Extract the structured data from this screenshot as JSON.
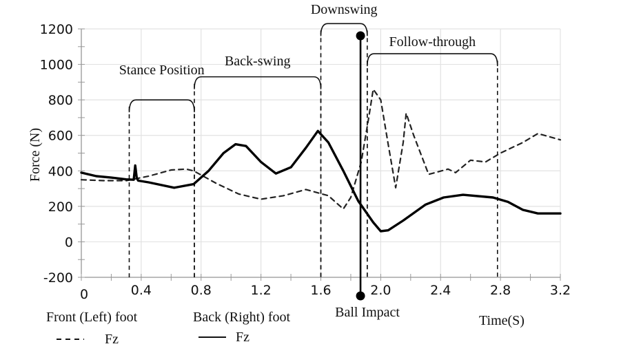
{
  "chart_data": {
    "type": "line",
    "title": "",
    "xlabel": "Time(S)",
    "ylabel": "Force (N)",
    "xlim": [
      0,
      3.2
    ],
    "ylim": [
      -200,
      1200
    ],
    "grid": true,
    "x_ticks": [
      "0",
      "0.4",
      "0.8",
      "1.2",
      "1.6",
      "2.0",
      "2.4",
      "2.8",
      "3.2"
    ],
    "x_tick_values": [
      0,
      0.4,
      0.8,
      1.2,
      1.6,
      2.0,
      2.4,
      2.8,
      3.2
    ],
    "y_ticks": [
      "1200",
      "1000",
      "800",
      "600",
      "400",
      "200",
      "0",
      "-200"
    ],
    "y_tick_values": [
      1200,
      1000,
      800,
      600,
      400,
      200,
      0,
      -200
    ],
    "series": [
      {
        "name": "Front (Left) foot Fz",
        "style": "dashed",
        "x": [
          0,
          0.15,
          0.3,
          0.45,
          0.6,
          0.7,
          0.75,
          0.9,
          1.05,
          1.2,
          1.35,
          1.5,
          1.65,
          1.75,
          1.8,
          1.87,
          1.92,
          1.95,
          2.0,
          2.05,
          2.1,
          2.15,
          2.17,
          2.22,
          2.32,
          2.45,
          2.5,
          2.6,
          2.7,
          2.8,
          2.95,
          3.05,
          3.2
        ],
        "y": [
          350,
          345,
          345,
          370,
          405,
          410,
          400,
          330,
          270,
          240,
          260,
          295,
          260,
          185,
          250,
          450,
          700,
          860,
          800,
          550,
          305,
          560,
          725,
          600,
          380,
          410,
          390,
          460,
          450,
          500,
          560,
          610,
          575
        ]
      },
      {
        "name": "Back (Right) foot Fz",
        "style": "solid",
        "x": [
          0,
          0.1,
          0.2,
          0.3,
          0.35,
          0.36,
          0.37,
          0.38,
          0.45,
          0.62,
          0.75,
          0.85,
          0.95,
          1.03,
          1.1,
          1.2,
          1.3,
          1.4,
          1.5,
          1.58,
          1.65,
          1.75,
          1.85,
          1.95,
          2.0,
          2.05,
          2.15,
          2.3,
          2.42,
          2.55,
          2.75,
          2.85,
          2.95,
          3.05,
          3.2
        ],
        "y": [
          390,
          370,
          362,
          352,
          350,
          430,
          360,
          345,
          335,
          305,
          325,
          400,
          500,
          550,
          540,
          450,
          385,
          420,
          530,
          625,
          560,
          400,
          230,
          110,
          60,
          65,
          120,
          210,
          250,
          265,
          250,
          225,
          180,
          160,
          160
        ]
      }
    ],
    "phases": [
      {
        "label": "Stance Position",
        "start": 0.32,
        "end": 0.755
      },
      {
        "label": "Back-swing",
        "start": 0.755,
        "end": 1.6
      },
      {
        "label": "Downswing",
        "start": 1.6,
        "end": 1.91
      },
      {
        "label": "Follow-through",
        "start": 1.91,
        "end": 2.78
      }
    ],
    "ball_impact": {
      "label": "Ball Impact",
      "time": 1.865
    },
    "legend": {
      "placement": "bottom-left",
      "entries": [
        {
          "title": "Front (Left) foot",
          "label": "Fz",
          "style": "dashed"
        },
        {
          "title": "Back (Right) foot",
          "label": "Fz",
          "style": "solid"
        }
      ]
    }
  }
}
